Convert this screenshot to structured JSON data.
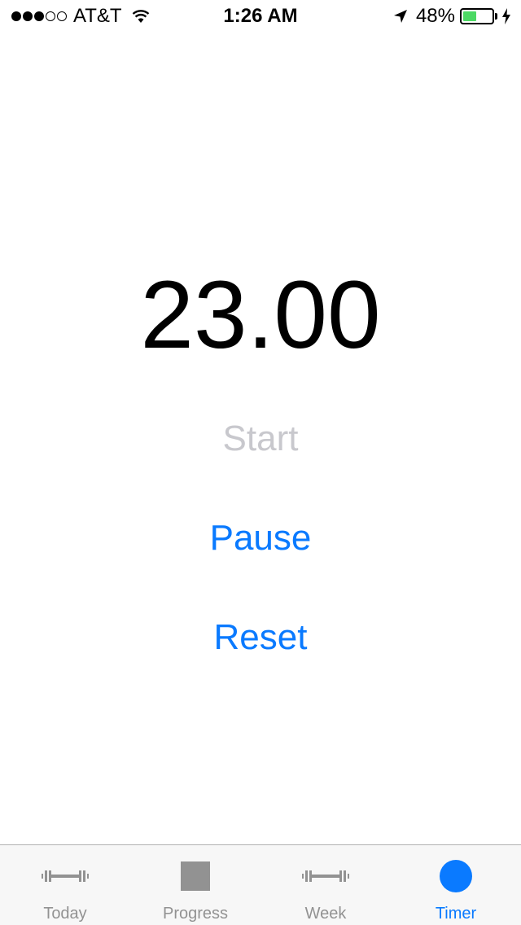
{
  "status_bar": {
    "signal_filled": 3,
    "signal_total": 5,
    "carrier": "AT&T",
    "time": "1:26 AM",
    "battery_percent": "48%",
    "battery_level": 0.48,
    "battery_color": "#4cd964"
  },
  "timer": {
    "value": "23.00",
    "start_label": "Start",
    "pause_label": "Pause",
    "reset_label": "Reset",
    "start_color": "#c8c8cd",
    "action_color": "#0a7aff"
  },
  "tab_bar": {
    "active_color": "#0a7aff",
    "inactive_color": "#929292",
    "tabs": [
      {
        "label": "Today",
        "icon": "dumbbell-icon",
        "active": false
      },
      {
        "label": "Progress",
        "icon": "square-icon",
        "active": false
      },
      {
        "label": "Week",
        "icon": "dumbbell-icon",
        "active": false
      },
      {
        "label": "Timer",
        "icon": "circle-icon",
        "active": true
      }
    ]
  }
}
